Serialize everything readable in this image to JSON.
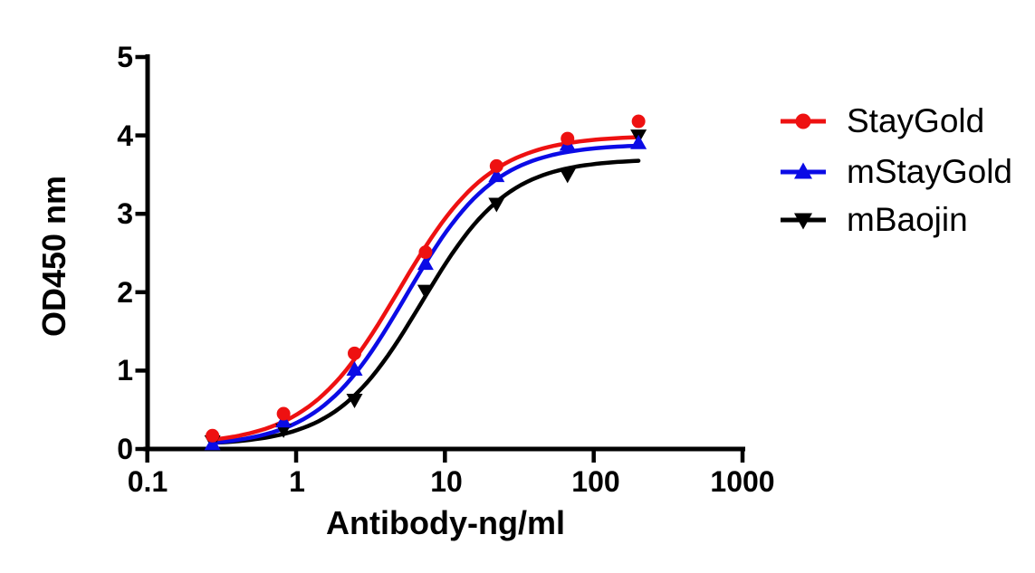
{
  "chart_data": {
    "type": "line",
    "title": "",
    "xlabel": "Antibody-ng/ml",
    "ylabel": "OD450 nm",
    "x_scale": "log",
    "xlim": [
      0.1,
      1000
    ],
    "ylim": [
      0,
      5
    ],
    "x_ticks": [
      0.1,
      1,
      10,
      100,
      1000
    ],
    "x_tick_labels": [
      "0.1",
      "1",
      "10",
      "100",
      "1000"
    ],
    "y_ticks": [
      0,
      1,
      2,
      3,
      4,
      5
    ],
    "y_tick_labels": [
      "0",
      "1",
      "2",
      "3",
      "4",
      "5"
    ],
    "grid": false,
    "legend_position": "right",
    "x": [
      0.274,
      0.823,
      2.469,
      7.407,
      22.22,
      66.67,
      200
    ],
    "series": [
      {
        "name": "StayGold",
        "color": "#ee1111",
        "marker": "circle",
        "values": [
          0.17,
          0.45,
          1.22,
          2.51,
          3.61,
          3.96,
          4.18
        ],
        "fit": {
          "model": "4PL",
          "bottom": 0.05,
          "top": 4.0,
          "ec50": 4.9,
          "hill": 1.4
        }
      },
      {
        "name": "mStayGold",
        "color": "#0b0be6",
        "marker": "triangle-up",
        "values": [
          0.06,
          0.35,
          1.01,
          2.36,
          3.48,
          3.88,
          3.9
        ],
        "fit": {
          "model": "4PL",
          "bottom": 0.03,
          "top": 3.89,
          "ec50": 5.5,
          "hill": 1.45
        }
      },
      {
        "name": "mBaojin",
        "color": "#000000",
        "marker": "triangle-down",
        "values": [
          0.1,
          0.25,
          0.63,
          2.02,
          3.13,
          3.5,
          4.0
        ],
        "fit": {
          "model": "4PL",
          "bottom": 0.05,
          "top": 3.7,
          "ec50": 7.0,
          "hill": 1.5
        }
      }
    ]
  }
}
